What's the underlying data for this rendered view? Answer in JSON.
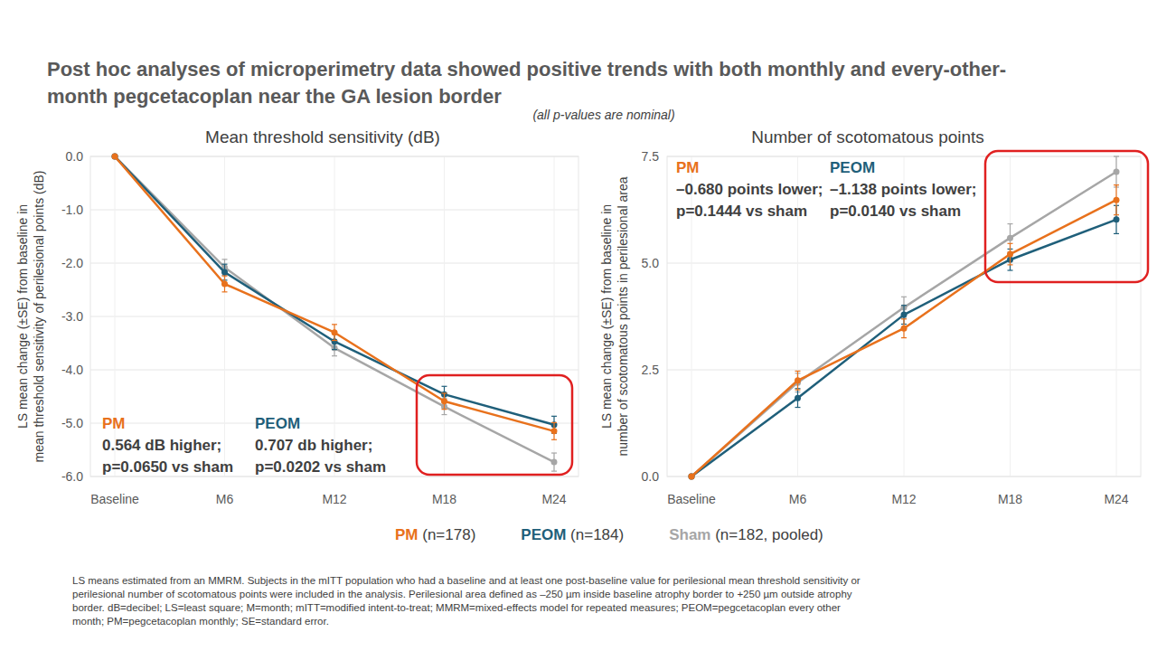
{
  "title": [
    "Post hoc analyses of microperimetry data showed positive trends with both monthly and every-other-",
    "month pegcetacoplan near the GA lesion border"
  ],
  "note": "(all p-values are nominal)",
  "footnote": [
    "LS means estimated from an MMRM. Subjects in the mITT population who had a baseline and at least one post-baseline value for perilesional mean threshold sensitivity or",
    "perilesional number of scotomatous points were included in the analysis. Perilesional area defined as –250 µm inside baseline atrophy border to +250 µm outside atrophy",
    "border. dB=decibel; LS=least square; M=month; mITT=modified intent-to-treat; MMRM=mixed-effects model for repeated measures; PEOM=pegcetacoplan every other",
    "month; PM=pegcetacoplan monthly; SE=standard error."
  ],
  "chart_data": [
    {
      "type": "line",
      "title": "Mean threshold sensitivity (dB)",
      "ylabel": [
        "LS mean change (±SE) from baseline in",
        "mean threshold sensitivity of perilesional points (dB)"
      ],
      "categories": [
        "Baseline",
        "M6",
        "M12",
        "M18",
        "M24"
      ],
      "ylim": [
        -6,
        0
      ],
      "yticks": [
        {
          "value": 0,
          "label": "0.0"
        },
        {
          "value": -1,
          "label": "-1.0"
        },
        {
          "value": -2,
          "label": "-2.0"
        },
        {
          "value": -3,
          "label": "-3.0"
        },
        {
          "value": -4,
          "label": "-4.0"
        },
        {
          "value": -5,
          "label": "-5.0"
        },
        {
          "value": -6,
          "label": "-6.0"
        }
      ],
      "grid": true,
      "marker": "circle",
      "series": [
        {
          "name": "PM (n=178)",
          "color": "#e8711c",
          "values": [
            0,
            -2.39,
            -3.3,
            -4.59,
            -5.15
          ],
          "errors": [
            0,
            0.15,
            0.15,
            0.15,
            0.16
          ]
        },
        {
          "name": "PEOM (n=184)",
          "color": "#1f5f7a",
          "values": [
            0,
            -2.17,
            -3.47,
            -4.46,
            -5.03
          ],
          "errors": [
            0,
            0.15,
            0.15,
            0.15,
            0.16
          ]
        },
        {
          "name": "Sham (n=182, pooled)",
          "color": "#a6a6a6",
          "values": [
            0,
            -2.08,
            -3.59,
            -4.69,
            -5.73
          ],
          "errors": [
            0,
            0.15,
            0.15,
            0.15,
            0.17
          ]
        }
      ],
      "annotations": [
        {
          "label": "PM",
          "color": "#e8711c",
          "lines": [
            "0.564 dB higher;",
            "p=0.0650 vs sham"
          ]
        },
        {
          "label": "PEOM",
          "color": "#1f5f7a",
          "lines": [
            "0.707 db higher;",
            "p=0.0202 vs sham"
          ]
        }
      ]
    },
    {
      "type": "line",
      "title": "Number of scotomatous points",
      "ylabel": [
        "LS mean change (±SE) from baseline in",
        "number of scotomatous points in perilesional area"
      ],
      "categories": [
        "Baseline",
        "M6",
        "M12",
        "M18",
        "M24"
      ],
      "ylim": [
        0,
        7.5
      ],
      "yticks": [
        {
          "value": 0,
          "label": "0.0"
        },
        2.5,
        {
          "value": 5,
          "label": "5.0"
        },
        7.5
      ],
      "grid": true,
      "marker": "circle",
      "series": [
        {
          "name": "PM (n=178)",
          "color": "#e8711c",
          "values": [
            0,
            2.25,
            3.47,
            5.21,
            6.48
          ],
          "errors": [
            0,
            0.22,
            0.22,
            0.25,
            0.35
          ]
        },
        {
          "name": "PEOM (n=184)",
          "color": "#1f5f7a",
          "values": [
            0,
            1.84,
            3.79,
            5.08,
            6.02
          ],
          "errors": [
            0,
            0.22,
            0.22,
            0.25,
            0.33
          ]
        },
        {
          "name": "Sham (n=182, pooled)",
          "color": "#a6a6a6",
          "values": [
            0,
            2.2,
            3.96,
            5.59,
            7.14
          ],
          "errors": [
            0,
            0.22,
            0.25,
            0.33,
            0.36
          ]
        }
      ],
      "annotations": [
        {
          "label": "PM",
          "color": "#e8711c",
          "lines": [
            "–0.680 points lower;",
            "p=0.1444 vs sham"
          ]
        },
        {
          "label": "PEOM",
          "color": "#1f5f7a",
          "lines": [
            "–1.138 points lower;",
            "p=0.0140 vs sham"
          ]
        }
      ]
    }
  ]
}
